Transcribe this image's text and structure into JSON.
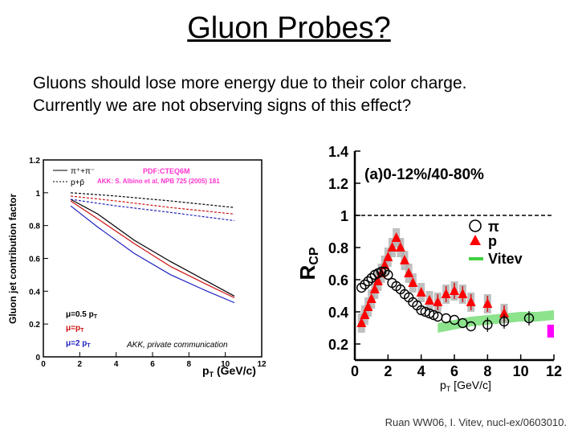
{
  "slide": {
    "title": "Gluon Probes?",
    "bullets": [
      "Gluons should lose more energy due to their color charge.",
      "Currently we are not observing signs of this effect?"
    ],
    "citation": "Ruan WW06, I. Vitev, nucl-ex/0603010."
  },
  "colors": {
    "black": "#000000",
    "red": "#d01010",
    "blue": "#2020c0",
    "magenta": "#ff00ff",
    "pink": "#ff33cc",
    "gray": "#b0b0b0",
    "green": "#40d040"
  },
  "chart_data": [
    {
      "type": "line",
      "ylabel": "Gluon jet contribution factor",
      "xlabel_main": "p",
      "xlabel_sub": "T",
      "xlabel_unit": " (GeV/c)",
      "xlim": [
        0,
        12
      ],
      "ylim": [
        0,
        1.2
      ],
      "xticks": [
        "0",
        "2",
        "4",
        "6",
        "8",
        "10",
        "12"
      ],
      "yticks": [
        "0",
        "0.2",
        "0.4",
        "0.6",
        "0.8",
        "1",
        "1.2"
      ],
      "annotation_pdf": "PDF:CTEQ6M",
      "annotation_akk": "AKK: S. Albino et al, NPB 725 (2005) 181",
      "annotation_private": "AKK, private communication",
      "legend_top": [
        "π⁺+π⁻",
        "p+p̄"
      ],
      "legend_scale": [
        "μ=0.5 p",
        "μ=p",
        "μ=2 p"
      ],
      "legend_scale_sub": "T",
      "series": [
        {
          "name": "pion mu=0.5 pT",
          "color": "black",
          "dash": false,
          "x": [
            1.5,
            3,
            5,
            7,
            9,
            10.5
          ],
          "y": [
            0.96,
            0.87,
            0.71,
            0.58,
            0.46,
            0.37
          ]
        },
        {
          "name": "pion mu=pT",
          "color": "red",
          "dash": false,
          "x": [
            1.5,
            3,
            5,
            7,
            9,
            10.5
          ],
          "y": [
            0.95,
            0.84,
            0.69,
            0.55,
            0.44,
            0.36
          ]
        },
        {
          "name": "pion mu=2 pT",
          "color": "blue",
          "dash": false,
          "x": [
            1.5,
            3,
            5,
            7,
            9,
            10.5
          ],
          "y": [
            0.92,
            0.79,
            0.63,
            0.5,
            0.4,
            0.33
          ]
        },
        {
          "name": "proton mu=0.5 pT",
          "color": "black",
          "dash": true,
          "x": [
            1.5,
            4,
            7,
            10.5
          ],
          "y": [
            1.0,
            0.98,
            0.95,
            0.91
          ]
        },
        {
          "name": "proton mu=pT",
          "color": "red",
          "dash": true,
          "x": [
            1.5,
            4,
            7,
            10.5
          ],
          "y": [
            0.98,
            0.95,
            0.91,
            0.87
          ]
        },
        {
          "name": "proton mu=2 pT",
          "color": "blue",
          "dash": true,
          "x": [
            1.5,
            4,
            7,
            10.5
          ],
          "y": [
            0.96,
            0.92,
            0.88,
            0.83
          ]
        }
      ]
    },
    {
      "type": "scatter",
      "title": "(a)0-12%/40-80%",
      "ylabel_main": "R",
      "ylabel_sub": "CP",
      "xlabel_main": "p",
      "xlabel_sub": "T",
      "xlabel_unit": " [GeV/c]",
      "xlim": [
        0,
        12
      ],
      "ylim": [
        0.1,
        1.4
      ],
      "xticks": [
        "0",
        "2",
        "4",
        "6",
        "8",
        "10",
        "12"
      ],
      "yticks": [
        "0.2",
        "0.4",
        "0.6",
        "0.8",
        "1",
        "1.2",
        "1.4"
      ],
      "reference_line": 1.0,
      "legend": [
        {
          "label": "π",
          "marker": "open-circle"
        },
        {
          "label": "p",
          "marker": "red-triangle"
        },
        {
          "label": "Vitev",
          "marker": "green-band"
        }
      ],
      "series": [
        {
          "name": "pi",
          "x": [
            0.4,
            0.6,
            0.8,
            1.0,
            1.2,
            1.4,
            1.6,
            1.8,
            2.0,
            2.25,
            2.5,
            2.75,
            3.0,
            3.25,
            3.5,
            3.75,
            4.0,
            4.25,
            4.5,
            4.75,
            5.0,
            5.5,
            6.0,
            6.5,
            7.0,
            8.0,
            9.0,
            10.5
          ],
          "y": [
            0.55,
            0.57,
            0.59,
            0.61,
            0.63,
            0.64,
            0.65,
            0.65,
            0.63,
            0.58,
            0.56,
            0.54,
            0.51,
            0.49,
            0.46,
            0.44,
            0.41,
            0.4,
            0.39,
            0.38,
            0.37,
            0.36,
            0.35,
            0.33,
            0.31,
            0.32,
            0.34,
            0.36
          ]
        },
        {
          "name": "p",
          "x": [
            0.4,
            0.6,
            0.8,
            1.0,
            1.2,
            1.4,
            1.6,
            1.8,
            2.0,
            2.25,
            2.5,
            2.75,
            3.0,
            3.25,
            3.5,
            4.0,
            4.5,
            5.0,
            5.5,
            6.0,
            6.5,
            7.0,
            8.0,
            9.0
          ],
          "y": [
            0.33,
            0.38,
            0.43,
            0.48,
            0.54,
            0.59,
            0.64,
            0.69,
            0.74,
            0.8,
            0.86,
            0.8,
            0.72,
            0.64,
            0.58,
            0.52,
            0.47,
            0.46,
            0.51,
            0.53,
            0.51,
            0.46,
            0.45,
            0.39
          ]
        },
        {
          "name": "Vitev",
          "x": [
            5,
            6,
            7,
            8,
            9,
            10,
            11,
            12
          ],
          "y": [
            0.3,
            0.32,
            0.34,
            0.35,
            0.36,
            0.37,
            0.37,
            0.38
          ]
        }
      ],
      "magenta_box": {
        "x": [
          11.6,
          12
        ],
        "y": [
          0.24,
          0.32
        ]
      }
    }
  ]
}
